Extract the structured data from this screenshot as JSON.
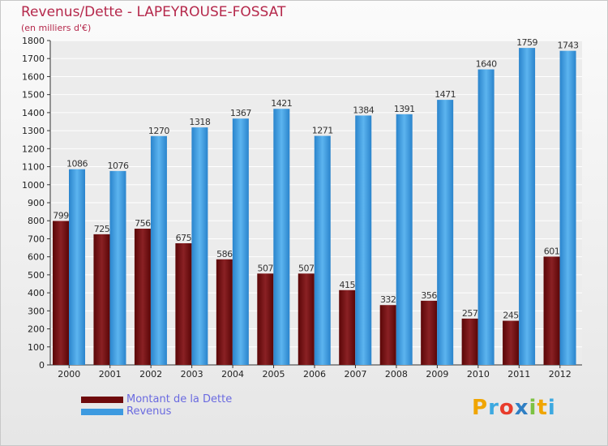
{
  "title": "Revenus/Dette - LAPEYROUSE-FOSSAT",
  "subtitle": "(en milliers d'€)",
  "colors": {
    "dette": "#7a1416",
    "revenus": "#3d9ae0",
    "title": "#b5284b",
    "legend_text": "#6a6ae0"
  },
  "legend": {
    "position": "bottom-left",
    "items": [
      {
        "label": "Montant de la Dette",
        "color": "#6e0a0c"
      },
      {
        "label": "Revenus",
        "color": "#3d9ae0"
      }
    ]
  },
  "logo": {
    "letters": [
      "P",
      "r",
      "o",
      "x",
      "i",
      "t",
      "i"
    ],
    "colors": [
      "#f0a500",
      "#3da9e0",
      "#e83c2c",
      "#2f7fc4",
      "#7cc242",
      "#f0a500",
      "#3da9e0"
    ]
  },
  "chart_data": {
    "type": "bar",
    "categories": [
      "2000",
      "2001",
      "2002",
      "2003",
      "2004",
      "2005",
      "2006",
      "2007",
      "2008",
      "2009",
      "2010",
      "2011",
      "2012"
    ],
    "series": [
      {
        "name": "Montant de la Dette",
        "values": [
          799,
          725,
          756,
          675,
          586,
          507,
          507,
          415,
          332,
          356,
          257,
          245,
          601
        ]
      },
      {
        "name": "Revenus",
        "values": [
          1086,
          1076,
          1270,
          1318,
          1367,
          1421,
          1271,
          1384,
          1391,
          1471,
          1640,
          1759,
          1743
        ]
      }
    ],
    "ylim": [
      0,
      1800
    ],
    "yticks": [
      0,
      100,
      200,
      300,
      400,
      500,
      600,
      700,
      800,
      900,
      1000,
      1100,
      1200,
      1300,
      1400,
      1500,
      1600,
      1700,
      1800
    ],
    "grid": true
  }
}
